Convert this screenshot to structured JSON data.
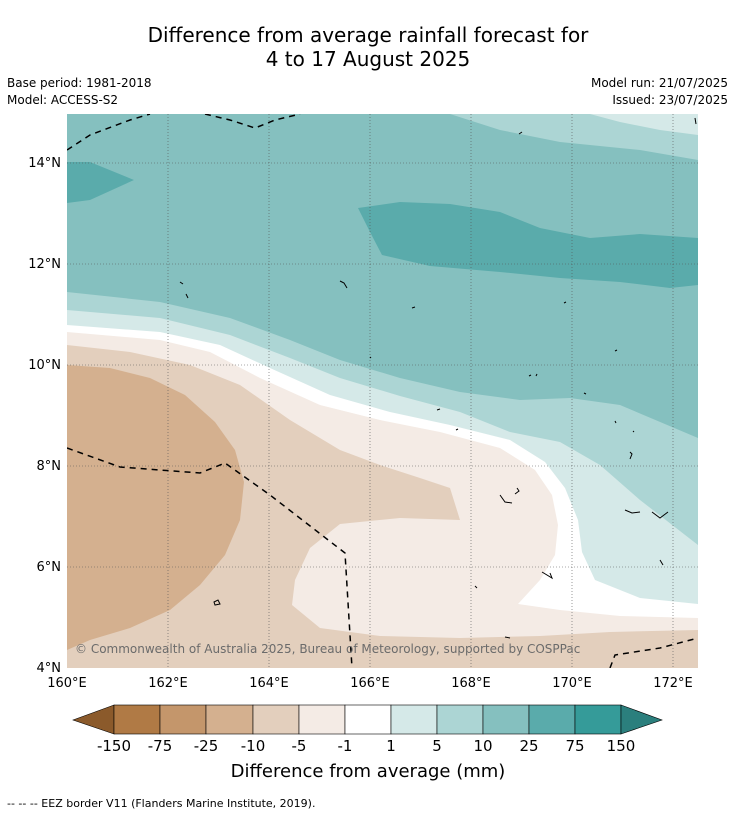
{
  "title_line1": "Difference from average rainfall forecast for",
  "title_line2": "4 to 17 August 2025",
  "meta": {
    "base_period": "Base period: 1981-2018",
    "model": "Model: ACCESS-S2",
    "model_run": "Model run: 21/07/2025",
    "issued": "Issued: 23/07/2025"
  },
  "copyright": "© Commonwealth of Australia 2025, Bureau of Meteorology, supported by COSPPac",
  "lat_ticks": [
    "4°N",
    "6°N",
    "8°N",
    "10°N",
    "12°N",
    "14°N"
  ],
  "lon_ticks": [
    "160°E",
    "162°E",
    "164°E",
    "166°E",
    "168°E",
    "170°E",
    "172°E"
  ],
  "colorbar": {
    "label": "Difference from average (mm)",
    "ticks": [
      "-150",
      "-75",
      "-25",
      "-10",
      "-5",
      "-1",
      "1",
      "5",
      "10",
      "25",
      "75",
      "150"
    ],
    "colors": [
      "#8b5a2b",
      "#b07a45",
      "#c4966b",
      "#d4b08f",
      "#e3cfbd",
      "#f4ebe5",
      "#ffffff",
      "#d5e9e8",
      "#acd5d4",
      "#85c0bf",
      "#5aabab",
      "#359b99",
      "#2b7f7d"
    ]
  },
  "legend_note": "--  --  -- EEZ border V11 (Flanders Marine Institute, 2019)."
}
